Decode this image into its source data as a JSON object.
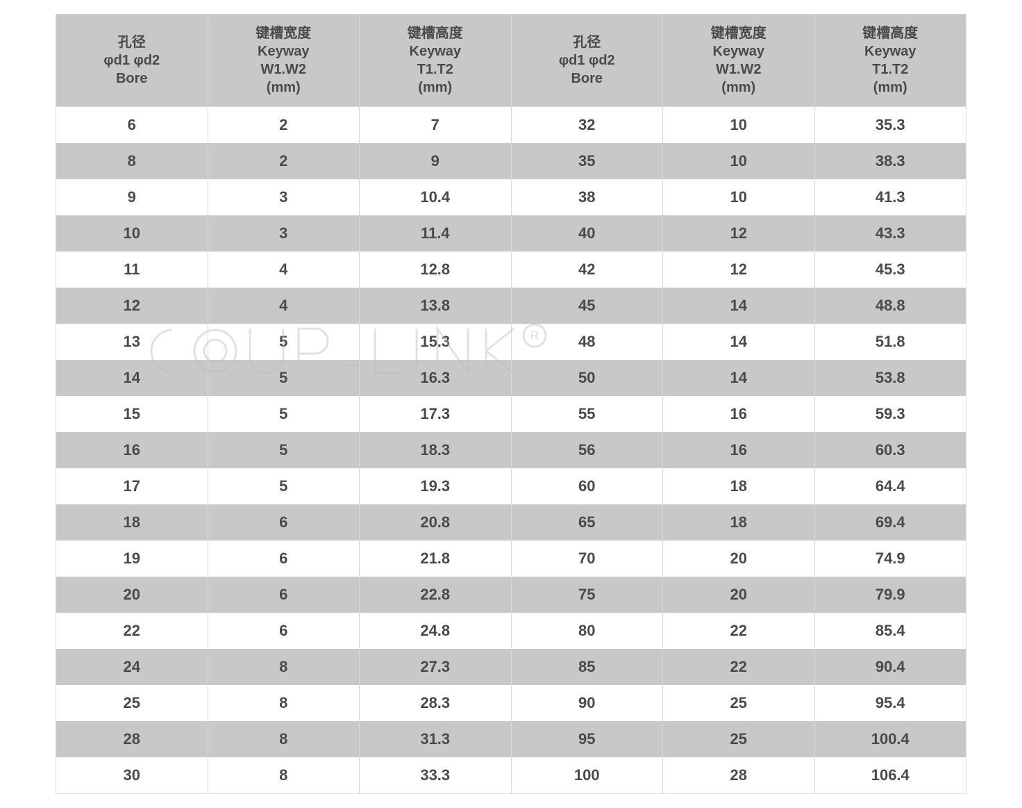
{
  "table": {
    "background_odd": "#ffffff",
    "background_even": "#c8c8c8",
    "header_background": "#c8c8c8",
    "text_color": "#4a4a4a",
    "border_color": "#d9d9d9",
    "header_fontsize": 20,
    "cell_fontsize": 22,
    "columns": [
      {
        "l1": "孔径",
        "l2": "φd1 φd2",
        "l3": "Bore",
        "l4": ""
      },
      {
        "l1": "键槽宽度",
        "l2": "Keyway",
        "l3": "W1.W2",
        "l4": "(mm)"
      },
      {
        "l1": "键槽高度",
        "l2": "Keyway",
        "l3": "T1.T2",
        "l4": "(mm)"
      },
      {
        "l1": "孔径",
        "l2": "φd1 φd2",
        "l3": "Bore",
        "l4": ""
      },
      {
        "l1": "键槽宽度",
        "l2": "Keyway",
        "l3": "W1.W2",
        "l4": "(mm)"
      },
      {
        "l1": "键槽高度",
        "l2": "Keyway",
        "l3": "T1.T2",
        "l4": "(mm)"
      }
    ],
    "rows": [
      [
        "6",
        "2",
        "7",
        "32",
        "10",
        "35.3"
      ],
      [
        "8",
        "2",
        "9",
        "35",
        "10",
        "38.3"
      ],
      [
        "9",
        "3",
        "10.4",
        "38",
        "10",
        "41.3"
      ],
      [
        "10",
        "3",
        "11.4",
        "40",
        "12",
        "43.3"
      ],
      [
        "11",
        "4",
        "12.8",
        "42",
        "12",
        "45.3"
      ],
      [
        "12",
        "4",
        "13.8",
        "45",
        "14",
        "48.8"
      ],
      [
        "13",
        "5",
        "15.3",
        "48",
        "14",
        "51.8"
      ],
      [
        "14",
        "5",
        "16.3",
        "50",
        "14",
        "53.8"
      ],
      [
        "15",
        "5",
        "17.3",
        "55",
        "16",
        "59.3"
      ],
      [
        "16",
        "5",
        "18.3",
        "56",
        "16",
        "60.3"
      ],
      [
        "17",
        "5",
        "19.3",
        "60",
        "18",
        "64.4"
      ],
      [
        "18",
        "6",
        "20.8",
        "65",
        "18",
        "69.4"
      ],
      [
        "19",
        "6",
        "21.8",
        "70",
        "20",
        "74.9"
      ],
      [
        "20",
        "6",
        "22.8",
        "75",
        "20",
        "79.9"
      ],
      [
        "22",
        "6",
        "24.8",
        "80",
        "22",
        "85.4"
      ],
      [
        "24",
        "8",
        "27.3",
        "85",
        "22",
        "90.4"
      ],
      [
        "25",
        "8",
        "28.3",
        "90",
        "25",
        "95.4"
      ],
      [
        "28",
        "8",
        "31.3",
        "95",
        "25",
        "100.4"
      ],
      [
        "30",
        "8",
        "33.3",
        "100",
        "28",
        "106.4"
      ]
    ]
  },
  "watermark": {
    "text": "COUP-LINK",
    "registered": "®",
    "stroke_color": "#bdbdbd"
  }
}
